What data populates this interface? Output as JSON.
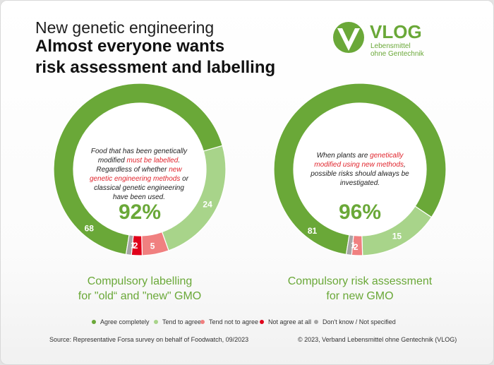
{
  "header": {
    "kicker": "New genetic engineering",
    "title_line1": "Almost everyone wants",
    "title_line2": "risk assessment and labelling"
  },
  "logo": {
    "name": "VLOG",
    "line1": "Lebensmittel",
    "line2": "ohne Gentechnik"
  },
  "colors": {
    "agree_completely": "#6aa838",
    "tend_to_agree": "#a8d48a",
    "tend_not_to_agree": "#f08080",
    "not_agree_at_all": "#e0001a",
    "dont_know": "#a6a6a6"
  },
  "chart_data": [
    {
      "type": "pie",
      "categories": [
        "Agree completely",
        "Tend to agree",
        "Tend not to agree",
        "Not agree at all",
        "Don't know / Not specified"
      ],
      "values": [
        68,
        24,
        5,
        2,
        1
      ],
      "total_label": "92%",
      "question_parts": [
        "Food that has been genetically modified ",
        "must be labelled",
        ". Regardless of whether ",
        "new genetic engineering methods",
        " or classical genetic engineering have been used."
      ],
      "subtitle_line1": "Compulsory labelling",
      "subtitle_line2": "for \"old“ and \"new\" GMO"
    },
    {
      "type": "pie",
      "categories": [
        "Agree completely",
        "Tend to agree",
        "Tend not to agree",
        "Not agree at all",
        "Don't know / Not specified"
      ],
      "values": [
        81,
        15,
        2,
        0,
        1
      ],
      "total_label": "96%",
      "question_parts": [
        "When plants are ",
        "genetically modified using new methods",
        ", possible risks should always be investigated.",
        "",
        ""
      ],
      "subtitle_line1": "Compulsory risk assessment",
      "subtitle_line2": "for new GMO"
    }
  ],
  "legend": [
    {
      "label": "Agree completely",
      "color": "#6aa838"
    },
    {
      "label": "Tend to agree",
      "color": "#a8d48a"
    },
    {
      "label": "Tend not to agree",
      "color": "#f08080"
    },
    {
      "label": "Not agree at all",
      "color": "#e0001a"
    },
    {
      "label": "Don't know / Not specified",
      "color": "#a6a6a6"
    }
  ],
  "footer": {
    "source": "Source:  Representative  Forsa survey on behalf of Foodwatch, 09/2023",
    "copyright": "© 2023, Verband  Lebensmittel  ohne Gentechnik  (VLOG)"
  }
}
